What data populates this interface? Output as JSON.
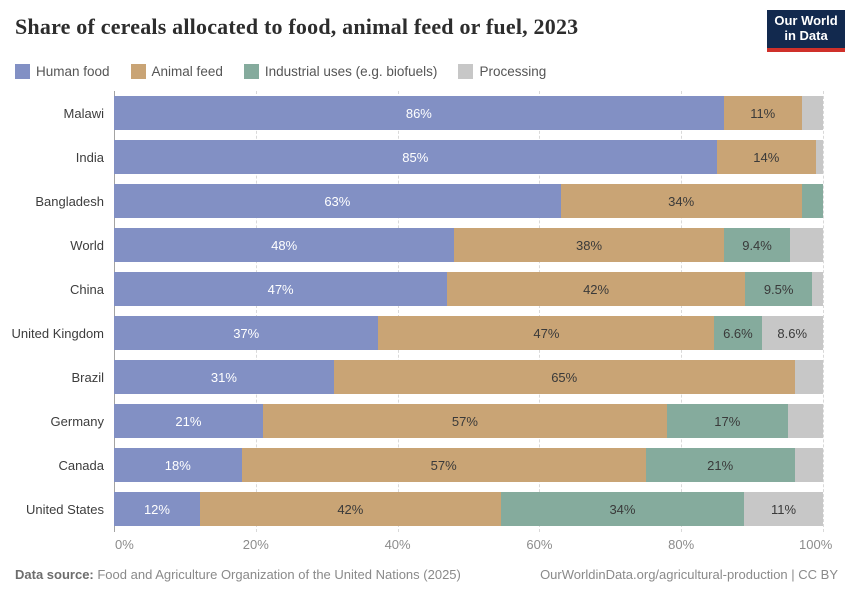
{
  "header": {
    "title": "Share of cereals allocated to food, animal feed or fuel, 2023",
    "logo": {
      "line1": "Our World",
      "line2": "in Data"
    }
  },
  "colors": {
    "human_food": "#8290c4",
    "animal_feed": "#c9a475",
    "industrial": "#85ab9d",
    "processing": "#c7c7c7",
    "logo_navy": "#12294e",
    "logo_red": "#cf302a"
  },
  "chart_data": {
    "type": "bar",
    "subtype": "horizontal-stacked",
    "title": "Share of cereals allocated to food, animal feed or fuel, 2023",
    "xlim": [
      0,
      100
    ],
    "grid": "vertical-dashed",
    "legend_position": "top-left",
    "x_ticks": [
      "0%",
      "20%",
      "40%",
      "60%",
      "80%",
      "100%"
    ],
    "x_tick_values": [
      0,
      20,
      40,
      60,
      80,
      100
    ],
    "series": [
      {
        "name": "Human food",
        "color": "#8290c4",
        "label_color": "#ffffff"
      },
      {
        "name": "Animal feed",
        "color": "#c9a475",
        "label_color": "#3a3a3a"
      },
      {
        "name": "Industrial uses (e.g. biofuels)",
        "color": "#85ab9d",
        "label_color": "#3a3a3a"
      },
      {
        "name": "Processing",
        "color": "#c7c7c7",
        "label_color": "#3a3a3a"
      }
    ],
    "categories": [
      "Malawi",
      "India",
      "Bangladesh",
      "World",
      "China",
      "United Kingdom",
      "Brazil",
      "Germany",
      "Canada",
      "United States"
    ],
    "rows": [
      {
        "category": "Malawi",
        "values": [
          86,
          11,
          0,
          3
        ],
        "labels": [
          "86%",
          "11%",
          "",
          ""
        ]
      },
      {
        "category": "India",
        "values": [
          85,
          14,
          0,
          1
        ],
        "labels": [
          "85%",
          "14%",
          "",
          ""
        ]
      },
      {
        "category": "Bangladesh",
        "values": [
          63,
          34,
          3,
          0
        ],
        "labels": [
          "63%",
          "34%",
          "",
          ""
        ]
      },
      {
        "category": "World",
        "values": [
          48,
          38,
          9.4,
          4.6
        ],
        "labels": [
          "48%",
          "38%",
          "9.4%",
          ""
        ]
      },
      {
        "category": "China",
        "values": [
          47,
          42,
          9.5,
          1.5
        ],
        "labels": [
          "47%",
          "42%",
          "9.5%",
          ""
        ]
      },
      {
        "category": "United Kingdom",
        "values": [
          37,
          47,
          6.6,
          8.6
        ],
        "labels": [
          "37%",
          "47%",
          "6.6%",
          "8.6%"
        ]
      },
      {
        "category": "Brazil",
        "values": [
          31,
          65,
          0,
          4
        ],
        "labels": [
          "31%",
          "65%",
          "",
          ""
        ]
      },
      {
        "category": "Germany",
        "values": [
          21,
          57,
          17,
          5
        ],
        "labels": [
          "21%",
          "57%",
          "17%",
          ""
        ]
      },
      {
        "category": "Canada",
        "values": [
          18,
          57,
          21,
          4
        ],
        "labels": [
          "18%",
          "57%",
          "21%",
          ""
        ]
      },
      {
        "category": "United States",
        "values": [
          12,
          42,
          34,
          11
        ],
        "labels": [
          "12%",
          "42%",
          "34%",
          "11%"
        ]
      }
    ]
  },
  "footer": {
    "source_label": "Data source:",
    "source_text": " Food and Agriculture Organization of the United Nations (2025)",
    "credit": "OurWorldinData.org/agricultural-production | CC BY"
  }
}
